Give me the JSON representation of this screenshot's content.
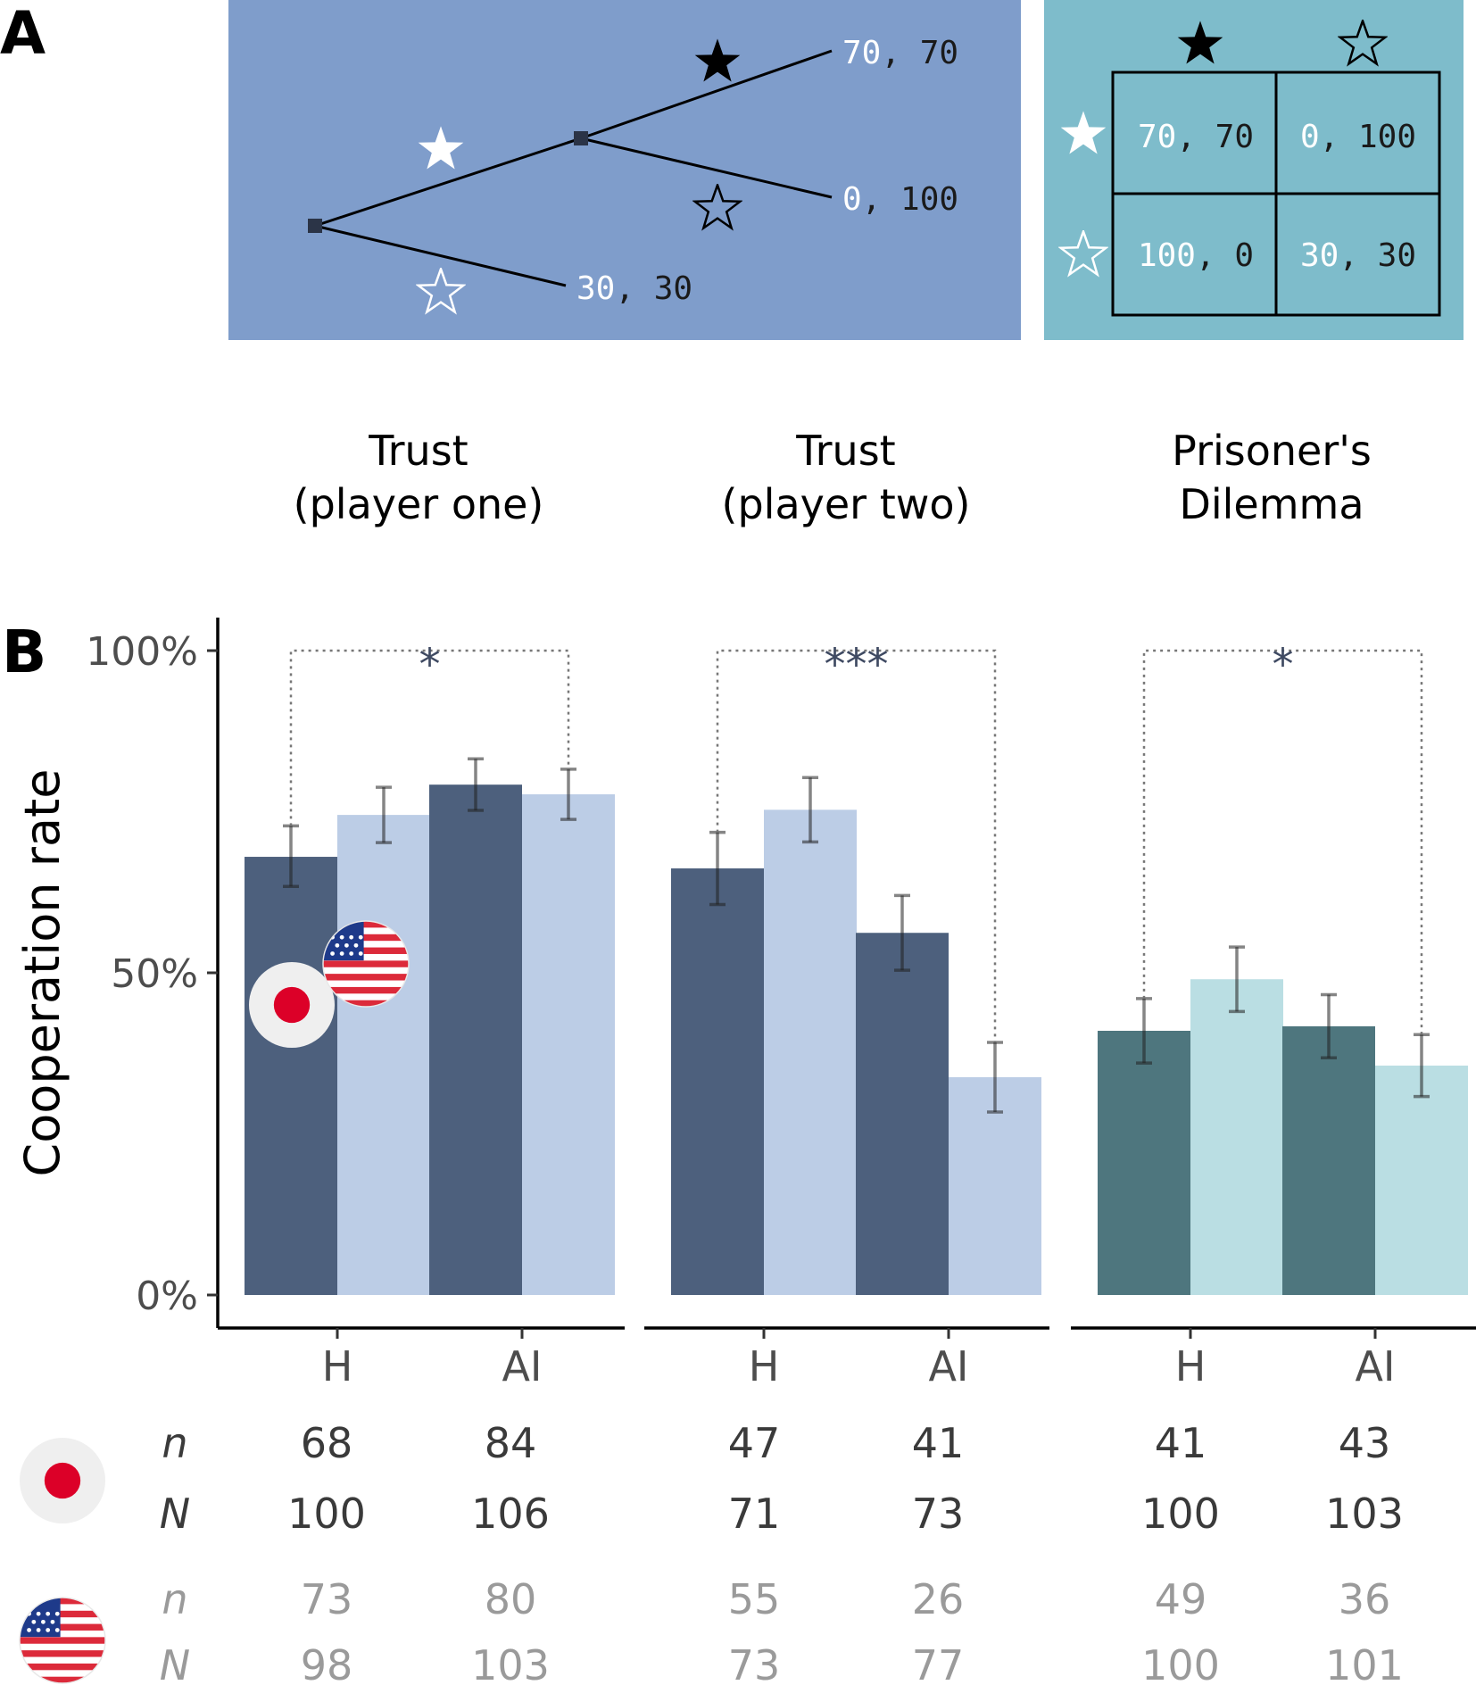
{
  "panel_a": {
    "label": "A",
    "tree_payoffs": {
      "top": {
        "a": "70",
        "sep": ", ",
        "b": "70"
      },
      "mid": {
        "a": "0",
        "sep": ", ",
        "b": "100"
      },
      "bottom": {
        "a": "30",
        "sep": ", ",
        "b": "30"
      }
    },
    "matrix_payoffs": [
      [
        {
          "a": "70",
          "sep": ", ",
          "b": "70"
        },
        {
          "a": "0",
          "sep": ", ",
          "b": "100"
        }
      ],
      [
        {
          "a": "100",
          "sep": ", ",
          "b": "0"
        },
        {
          "a": "30",
          "sep": ", ",
          "b": "30"
        }
      ]
    ],
    "icons": [
      "filled-star",
      "outline-star"
    ],
    "colors": {
      "tree_bg": "#7f9dcb",
      "matrix_bg": "#7ebccb"
    }
  },
  "game_titles": [
    {
      "line1": "Trust",
      "line2": "(player one)"
    },
    {
      "line1": "Trust",
      "line2": "(player two)"
    },
    {
      "line1": "Prisoner's",
      "line2": "Dilemma"
    }
  ],
  "chart_data": {
    "type": "bar",
    "panel_label": "B",
    "ylabel": "Cooperation rate",
    "ylim": [
      0,
      100
    ],
    "yticks": [
      "0%",
      "50%",
      "100%"
    ],
    "categories": [
      "H",
      "AI"
    ],
    "series": [
      {
        "name": "Japan",
        "color_trust": "#4d607d",
        "color_pd": "#4e767e"
      },
      {
        "name": "United States",
        "color_trust": "#bccde6",
        "color_pd": "#badee3"
      }
    ],
    "facets": [
      {
        "game": "Trust (player one)",
        "values": {
          "Japan": [
            68,
            79.2
          ],
          "United States": [
            74.5,
            77.7
          ]
        },
        "ci": {
          "Japan": [
            [
              63.4,
              72.8
            ],
            [
              75.2,
              83.2
            ]
          ],
          "United States": [
            [
              70.2,
              78.8
            ],
            [
              73.8,
              81.6
            ]
          ]
        },
        "significance": "*"
      },
      {
        "game": "Trust (player two)",
        "values": {
          "Japan": [
            66.2,
            56.2
          ],
          "United States": [
            75.3,
            33.8
          ]
        },
        "ci": {
          "Japan": [
            [
              60.6,
              71.8
            ],
            [
              50.4,
              62.0
            ]
          ],
          "United States": [
            [
              70.3,
              80.3
            ],
            [
              28.4,
              39.2
            ]
          ]
        },
        "significance": "***"
      },
      {
        "game": "Prisoner's Dilemma",
        "values": {
          "Japan": [
            41,
            41.7
          ],
          "United States": [
            49,
            35.6
          ]
        },
        "ci": {
          "Japan": [
            [
              36.0,
              46.0
            ],
            [
              36.8,
              46.6
            ]
          ],
          "United States": [
            [
              44.0,
              54.0
            ],
            [
              30.8,
              40.4
            ]
          ]
        },
        "significance": "*"
      }
    ]
  },
  "sample_table": {
    "row_labels": {
      "n": "n",
      "N": "N"
    },
    "japan": {
      "n": [
        "68",
        "84",
        "47",
        "41",
        "41",
        "43"
      ],
      "N": [
        "100",
        "106",
        "71",
        "73",
        "100",
        "103"
      ]
    },
    "usa": {
      "n": [
        "73",
        "80",
        "55",
        "26",
        "49",
        "36"
      ],
      "N": [
        "98",
        "103",
        "73",
        "77",
        "100",
        "101"
      ]
    },
    "colors": {
      "japan_text": "#3a3a3a",
      "usa_text": "#9a9a9a"
    }
  }
}
